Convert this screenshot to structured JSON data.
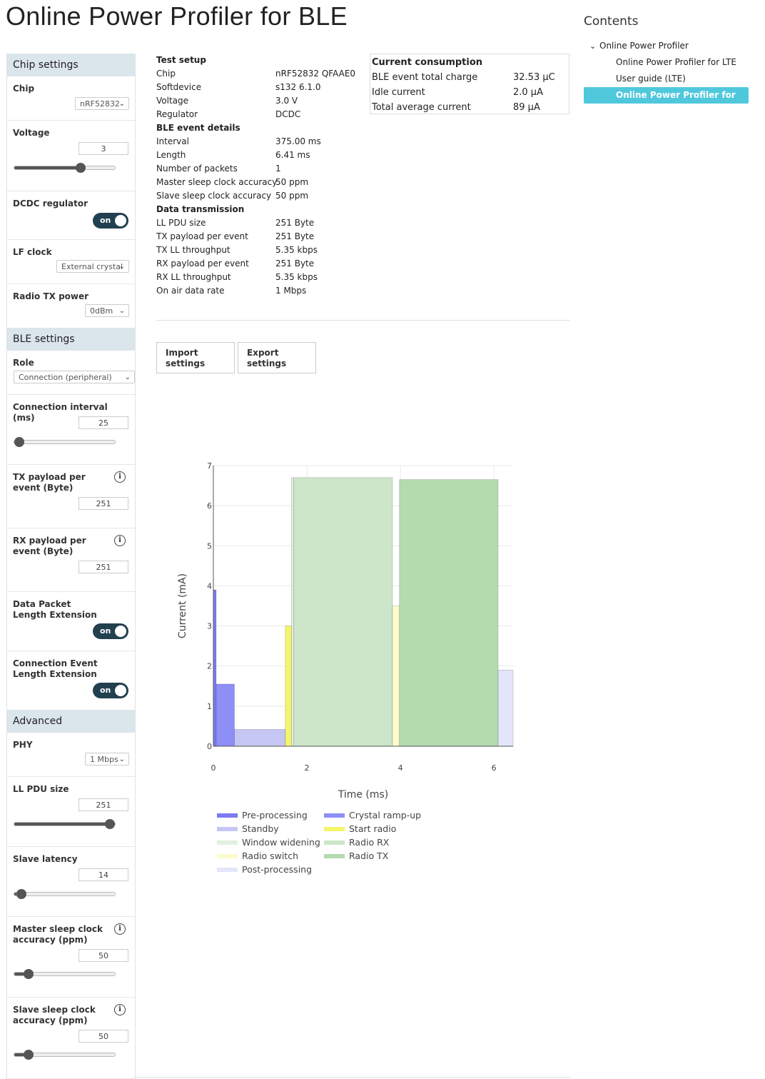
{
  "page_title": "Online Power Profiler for BLE",
  "sidebar": {
    "chip_settings": {
      "heading": "Chip settings",
      "chip": {
        "label": "Chip",
        "value": "nRF52832"
      },
      "voltage": {
        "label": "Voltage",
        "value": "3",
        "slider_fraction": 0.68
      },
      "dcdc": {
        "label": "DCDC regulator",
        "toggle": "on"
      },
      "lf_clock": {
        "label": "LF clock",
        "value": "External crystal"
      },
      "radio_tx_power": {
        "label": "Radio TX power",
        "value": "0dBm"
      }
    },
    "ble_settings": {
      "heading": "BLE settings",
      "role": {
        "label": "Role",
        "value": "Connection (peripheral)"
      },
      "connection_interval": {
        "label": "Connection interval (ms)",
        "value": "25",
        "slider_fraction": 0.0
      },
      "tx_payload": {
        "label": "TX payload per event (Byte)",
        "value": "251"
      },
      "rx_payload": {
        "label": "RX payload per event (Byte)",
        "value": "251"
      },
      "dple": {
        "label": "Data Packet Length Extension",
        "toggle": "on"
      },
      "cele": {
        "label": "Connection Event Length Extension",
        "toggle": "on"
      }
    },
    "advanced": {
      "heading": "Advanced",
      "phy": {
        "label": "PHY",
        "value": "1 Mbps"
      },
      "ll_pdu": {
        "label": "LL PDU size",
        "value": "251",
        "slider_fraction": 1.0
      },
      "slave_latency": {
        "label": "Slave latency",
        "value": "14",
        "slider_fraction": 0.02
      },
      "master_sca": {
        "label": "Master sleep clock accuracy (ppm)",
        "value": "50",
        "slider_fraction": 0.1
      },
      "slave_sca": {
        "label": "Slave sleep clock accuracy (ppm)",
        "value": "50",
        "slider_fraction": 0.1
      }
    },
    "info_icon": "i"
  },
  "details": {
    "test_setup_heading": "Test setup",
    "chip": {
      "label": "Chip",
      "value": "nRF52832 QFAAE0"
    },
    "softdevice": {
      "label": "Softdevice",
      "value": "s132 6.1.0"
    },
    "voltage": {
      "label": "Voltage",
      "value": "3.0 V"
    },
    "regulator": {
      "label": "Regulator",
      "value": "DCDC"
    },
    "ble_event_heading": "BLE event details",
    "interval": {
      "label": "Interval",
      "value": "375.00 ms"
    },
    "length": {
      "label": "Length",
      "value": "6.41 ms"
    },
    "num_packets": {
      "label": "Number of packets",
      "value": "1"
    },
    "master_sca": {
      "label": "Master sleep clock accuracy",
      "value": "50 ppm"
    },
    "slave_sca": {
      "label": "Slave sleep clock accuracy",
      "value": "50 ppm"
    },
    "data_tx_heading": "Data transmission",
    "ll_pdu": {
      "label": "LL PDU size",
      "value": "251 Byte"
    },
    "tx_payload": {
      "label": "TX payload per event",
      "value": "251 Byte"
    },
    "tx_throughput": {
      "label": "TX LL throughput",
      "value": "5.35 kbps"
    },
    "rx_payload": {
      "label": "RX payload per event",
      "value": "251 Byte"
    },
    "rx_throughput": {
      "label": "RX LL throughput",
      "value": "5.35 kbps"
    },
    "on_air_rate": {
      "label": "On air data rate",
      "value": "1 Mbps"
    }
  },
  "consumption": {
    "heading": "Current consumption",
    "ble_event_charge": {
      "label": "BLE event total charge",
      "value": "32.53 µC"
    },
    "idle_current": {
      "label": "Idle current",
      "value": "2.0 µA"
    },
    "total_average": {
      "label": "Total average current",
      "value": "89 µA"
    }
  },
  "buttons": {
    "import": "Import settings",
    "export": "Export settings"
  },
  "contents": {
    "title": "Contents",
    "items": [
      "Online Power Profiler",
      "Online Power Profiler for LTE",
      "User guide (LTE)",
      "Online Power Profiler for BLE"
    ],
    "active_index": 3
  },
  "colors": {
    "toggle": "#22404f",
    "section_bg": "#dbe5ec",
    "toc_active": "#50c8dc"
  },
  "chart_data": {
    "type": "area",
    "xlabel": "Time (ms)",
    "ylabel": "Current (mA)",
    "xlim": [
      0,
      6.41
    ],
    "ylim": [
      0,
      7
    ],
    "xticks": [
      0,
      2,
      4,
      6
    ],
    "yticks": [
      0,
      1,
      2,
      3,
      4,
      5,
      6,
      7
    ],
    "grid": true,
    "legend_position": "bottom",
    "series": [
      {
        "name": "Pre-processing",
        "color": "#7b7bf0",
        "segments": [
          [
            0.0,
            0.06,
            3.9
          ]
        ]
      },
      {
        "name": "Crystal ramp-up",
        "color": "#8e8ef7",
        "segments": [
          [
            0.06,
            0.45,
            1.55
          ]
        ]
      },
      {
        "name": "Standby",
        "color": "#c6c6f4",
        "segments": [
          [
            0.45,
            1.54,
            0.42
          ]
        ]
      },
      {
        "name": "Start radio",
        "color": "#f5f56a",
        "segments": [
          [
            1.54,
            1.67,
            3.0
          ]
        ]
      },
      {
        "name": "Window widening",
        "color": "#e2f0e0",
        "segments": [
          [
            1.67,
            1.72,
            6.7
          ]
        ]
      },
      {
        "name": "Radio RX",
        "color": "#cde5c9",
        "segments": [
          [
            1.72,
            3.83,
            6.7
          ]
        ]
      },
      {
        "name": "Radio switch",
        "color": "#fbfbcc",
        "segments": [
          [
            3.83,
            3.98,
            3.5
          ]
        ]
      },
      {
        "name": "Radio TX",
        "color": "#b3dbae",
        "segments": [
          [
            3.98,
            6.09,
            6.65
          ]
        ]
      },
      {
        "name": "Post-processing",
        "color": "#e4e4fa",
        "segments": [
          [
            6.09,
            6.41,
            1.9
          ]
        ]
      }
    ]
  }
}
